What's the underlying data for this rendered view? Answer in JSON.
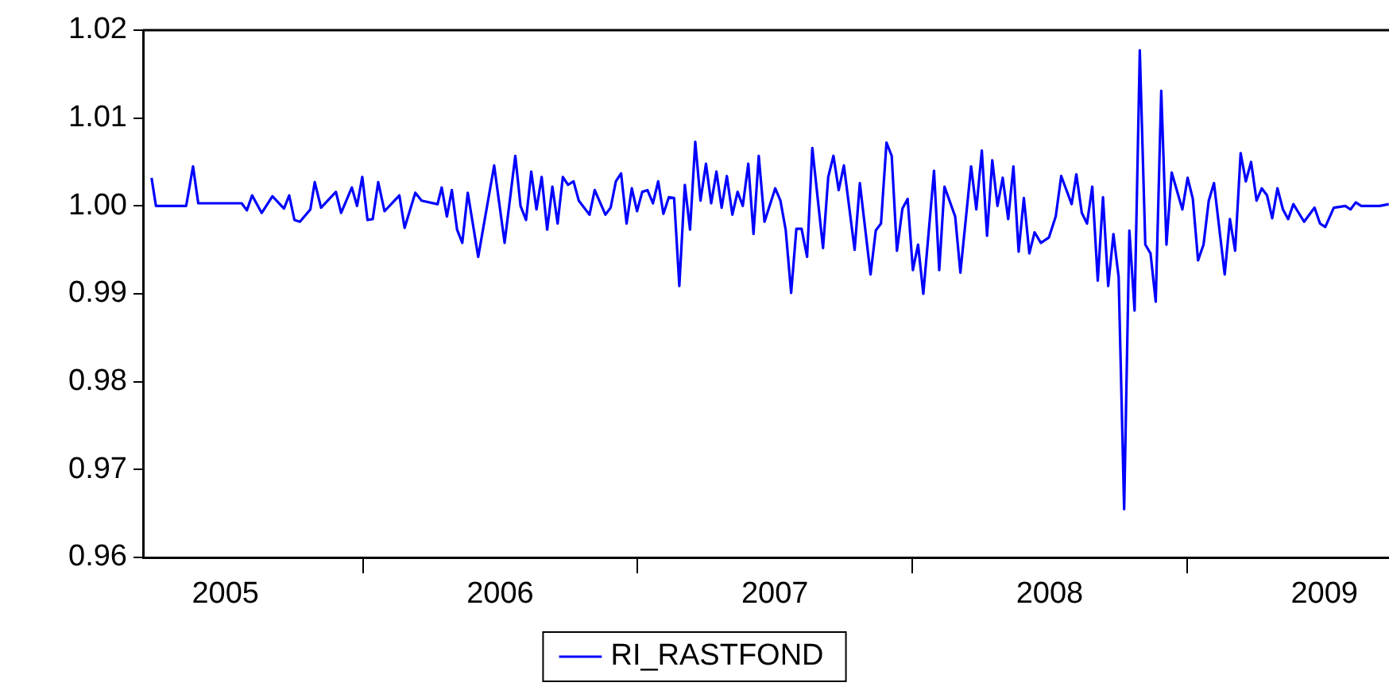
{
  "chart_data": {
    "type": "line",
    "legend": "bottom",
    "grid": false,
    "x": [
      2005.231,
      2005.247,
      2005.357,
      2005.382,
      2005.401,
      2005.559,
      2005.578,
      2005.597,
      2005.632,
      2005.671,
      2005.713,
      2005.732,
      2005.751,
      2005.771,
      2005.809,
      2005.825,
      2005.848,
      2005.902,
      2005.921,
      2005.96,
      2005.979,
      2005.998,
      2006.017,
      2006.036,
      2006.056,
      2006.079,
      2006.133,
      2006.152,
      2006.191,
      2006.214,
      2006.272,
      2006.287,
      2006.306,
      2006.324,
      2006.343,
      2006.362,
      2006.382,
      2006.42,
      2006.478,
      2006.516,
      2006.555,
      2006.574,
      2006.594,
      2006.613,
      2006.632,
      2006.651,
      2006.671,
      2006.69,
      2006.709,
      2006.728,
      2006.747,
      2006.767,
      2006.786,
      2006.825,
      2006.844,
      2006.883,
      2006.902,
      2006.921,
      2006.94,
      2006.96,
      2006.979,
      2006.998,
      2007.017,
      2007.036,
      2007.056,
      2007.075,
      2007.094,
      2007.114,
      2007.133,
      2007.152,
      2007.172,
      2007.191,
      2007.21,
      2007.229,
      2007.249,
      2007.268,
      2007.287,
      2007.306,
      2007.325,
      2007.345,
      2007.364,
      2007.383,
      2007.403,
      2007.422,
      2007.441,
      2007.462,
      2007.501,
      2007.52,
      2007.539,
      2007.559,
      2007.578,
      2007.597,
      2007.617,
      2007.636,
      2007.675,
      2007.694,
      2007.713,
      2007.732,
      2007.751,
      2007.79,
      2007.809,
      2007.848,
      2007.867,
      2007.886,
      2007.906,
      2007.925,
      2007.944,
      2007.964,
      2007.983,
      2008.002,
      2008.021,
      2008.04,
      2008.079,
      2008.098,
      2008.117,
      2008.156,
      2008.175,
      2008.214,
      2008.233,
      2008.253,
      2008.272,
      2008.291,
      2008.31,
      2008.329,
      2008.349,
      2008.368,
      2008.387,
      2008.406,
      2008.426,
      2008.445,
      2008.468,
      2008.497,
      2008.522,
      2008.542,
      2008.58,
      2008.597,
      2008.617,
      2008.636,
      2008.655,
      2008.675,
      2008.694,
      2008.713,
      2008.732,
      2008.751,
      2008.771,
      2008.79,
      2008.809,
      2008.828,
      2008.848,
      2008.867,
      2008.886,
      2008.906,
      2008.925,
      2008.944,
      2008.983,
      2009.002,
      2009.021,
      2009.04,
      2009.06,
      2009.079,
      2009.098,
      2009.137,
      2009.156,
      2009.175,
      2009.195,
      2009.214,
      2009.233,
      2009.253,
      2009.272,
      2009.291,
      2009.31,
      2009.329,
      2009.349,
      2009.368,
      2009.387,
      2009.426,
      2009.464,
      2009.484,
      2009.503,
      2009.534,
      2009.576,
      2009.595,
      2009.614,
      2009.634,
      2009.701,
      2009.734
    ],
    "series": [
      {
        "name": "RI_RASTFOND",
        "color": "#0000ff",
        "values": [
          1.0032,
          1.0,
          1.0,
          1.0045,
          1.0003,
          1.0003,
          0.9995,
          1.0012,
          0.9992,
          1.0011,
          0.9997,
          1.0012,
          0.9984,
          0.9982,
          0.9996,
          1.0027,
          0.9998,
          1.0016,
          0.9992,
          1.0021,
          1.0,
          1.0033,
          0.9984,
          0.9985,
          1.0027,
          0.9994,
          1.0012,
          0.9975,
          1.0015,
          1.0006,
          1.0002,
          1.0021,
          0.9988,
          1.0018,
          0.9973,
          0.9958,
          1.0015,
          0.9942,
          1.0046,
          0.9958,
          1.0057,
          1.0,
          0.9984,
          1.0039,
          0.9996,
          1.0033,
          0.9973,
          1.0022,
          0.998,
          1.0033,
          1.0024,
          1.0028,
          1.0006,
          0.999,
          1.0018,
          0.999,
          0.9998,
          1.0028,
          1.0037,
          0.998,
          1.002,
          0.9994,
          1.0016,
          1.0018,
          1.0003,
          1.0028,
          0.9991,
          1.001,
          1.0009,
          0.9909,
          1.0024,
          0.9973,
          1.0073,
          1.0006,
          1.0048,
          1.0003,
          1.0039,
          0.9998,
          1.0034,
          0.999,
          1.0016,
          1.0,
          1.0048,
          0.9968,
          1.0057,
          0.9982,
          1.002,
          1.0006,
          0.9973,
          0.9901,
          0.9974,
          0.9974,
          0.9942,
          1.0066,
          0.9952,
          1.0033,
          1.0057,
          1.0018,
          1.0046,
          0.995,
          1.0026,
          0.9922,
          0.9972,
          0.998,
          1.0072,
          1.0057,
          0.9949,
          0.9997,
          1.0008,
          0.9927,
          0.9956,
          0.99,
          1.004,
          0.9927,
          1.0022,
          0.9988,
          0.9924,
          1.0045,
          0.9996,
          1.0063,
          0.9966,
          1.0052,
          1.0,
          1.0032,
          0.9985,
          1.0045,
          0.9948,
          1.0009,
          0.9946,
          0.997,
          0.9958,
          0.9964,
          0.9988,
          1.0034,
          1.0002,
          1.0036,
          0.9992,
          0.998,
          1.0022,
          0.9915,
          1.001,
          0.9909,
          0.9968,
          0.9919,
          0.9655,
          0.9972,
          0.9881,
          1.0177,
          0.9956,
          0.9946,
          0.9891,
          1.0131,
          0.9956,
          1.0038,
          0.9996,
          1.0032,
          1.0008,
          0.9938,
          0.9956,
          1.0006,
          1.0026,
          0.9922,
          0.9985,
          0.9949,
          1.006,
          1.0028,
          1.005,
          1.0006,
          1.002,
          1.0012,
          0.9986,
          1.002,
          0.9996,
          0.9985,
          1.0002,
          0.9982,
          0.9998,
          0.998,
          0.9976,
          0.9998,
          1.0,
          0.9996,
          1.0004,
          1.0,
          1.0,
          1.0002
        ]
      }
    ],
    "xlim": [
      2005.2,
      2009.735
    ],
    "xticks": [
      {
        "value": 2005.5,
        "label": "2005"
      },
      {
        "value": 2006,
        "label": null
      },
      {
        "value": 2006.5,
        "label": "2006"
      },
      {
        "value": 2007,
        "label": null
      },
      {
        "value": 2007.5,
        "label": "2007"
      },
      {
        "value": 2008,
        "label": null
      },
      {
        "value": 2008.5,
        "label": "2008"
      },
      {
        "value": 2009,
        "label": null
      },
      {
        "value": 2009.5,
        "label": "2009"
      }
    ],
    "ylim": [
      0.96,
      1.02
    ],
    "yticks": [
      {
        "value": 0.96,
        "label": "0.96"
      },
      {
        "value": 0.97,
        "label": "0.97"
      },
      {
        "value": 0.98,
        "label": "0.98"
      },
      {
        "value": 0.99,
        "label": "0.99"
      },
      {
        "value": 1.0,
        "label": "1.00"
      },
      {
        "value": 1.01,
        "label": "1.01"
      },
      {
        "value": 1.02,
        "label": "1.02"
      }
    ]
  }
}
